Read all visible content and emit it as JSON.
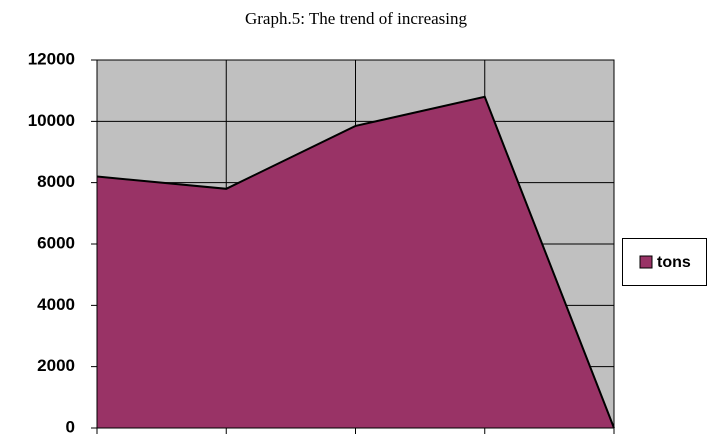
{
  "chart_data": {
    "type": "area",
    "title": "Graph.5: The trend of increasing",
    "categories": [
      null,
      null,
      null,
      null,
      null
    ],
    "series": [
      {
        "name": "tons",
        "color": "#993366",
        "values": [
          8200,
          7800,
          9850,
          10800,
          0
        ]
      }
    ],
    "ylim": [
      0,
      12000
    ],
    "yticks": [
      0,
      2000,
      4000,
      6000,
      8000,
      10000,
      12000
    ],
    "grid": true,
    "legend": "right",
    "background": "#c0c0c0"
  }
}
